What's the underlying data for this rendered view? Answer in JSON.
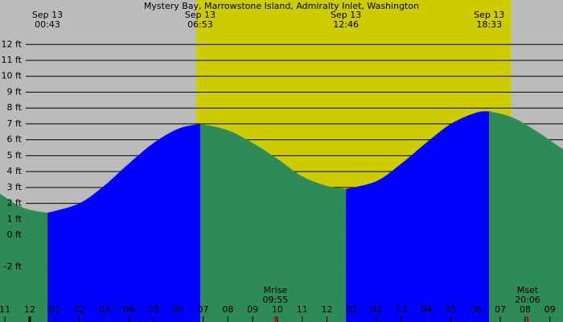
{
  "chart_data": {
    "type": "tide",
    "title": "Mystery Bay, Marrowstone Island, Admiralty Inlet, Washington",
    "background": "#bbbbbb",
    "daylight_color": "#cccc00",
    "daylight": [
      6.72,
      19.42
    ],
    "xlim": [
      -1.2,
      21.53
    ],
    "ylim": [
      -5.47,
      14.8
    ],
    "yticks": [
      {
        "value": 12,
        "label": "12 ft"
      },
      {
        "value": 11,
        "label": "11 ft"
      },
      {
        "value": 10,
        "label": "10 ft"
      },
      {
        "value": 9,
        "label": "9 ft"
      },
      {
        "value": 8,
        "label": "8 ft"
      },
      {
        "value": 7,
        "label": "7 ft"
      },
      {
        "value": 6,
        "label": "6 ft"
      },
      {
        "value": 5,
        "label": "5 ft"
      },
      {
        "value": 4,
        "label": "4 ft"
      },
      {
        "value": 3,
        "label": "3 ft"
      },
      {
        "value": 2,
        "label": "2 ft"
      },
      {
        "value": 1,
        "label": "1 ft"
      },
      {
        "value": 0,
        "label": "0 ft"
      },
      {
        "value": -2,
        "label": "-2 ft"
      }
    ],
    "xticks": [
      {
        "value": -1,
        "label": "11"
      },
      {
        "value": 0,
        "label": "12"
      },
      {
        "value": 1,
        "label": "01"
      },
      {
        "value": 2,
        "label": "02"
      },
      {
        "value": 3,
        "label": "03"
      },
      {
        "value": 4,
        "label": "04"
      },
      {
        "value": 5,
        "label": "05"
      },
      {
        "value": 6,
        "label": "06"
      },
      {
        "value": 7,
        "label": "07"
      },
      {
        "value": 8,
        "label": "08"
      },
      {
        "value": 9,
        "label": "09"
      },
      {
        "value": 10,
        "label": "10"
      },
      {
        "value": 11,
        "label": "11"
      },
      {
        "value": 12,
        "label": "12"
      },
      {
        "value": 13,
        "label": "01"
      },
      {
        "value": 14,
        "label": "02"
      },
      {
        "value": 15,
        "label": "03"
      },
      {
        "value": 16,
        "label": "04"
      },
      {
        "value": 17,
        "label": "05"
      },
      {
        "value": 18,
        "label": "06"
      },
      {
        "value": 19,
        "label": "07"
      },
      {
        "value": 20,
        "label": "08"
      },
      {
        "value": 21,
        "label": "09"
      }
    ],
    "grid": true,
    "series": [
      {
        "color": "#2e8b57",
        "x": [
          -1.2,
          -0.5,
          0,
          0.717
        ],
        "values": [
          2.6,
          1.9,
          1.6,
          1.4
        ]
      },
      {
        "color": "#0000ff",
        "x": [
          0.717,
          2,
          3,
          4,
          5,
          6,
          6.883
        ],
        "values": [
          1.4,
          2.0,
          3.1,
          4.5,
          5.8,
          6.7,
          7.0
        ]
      },
      {
        "color": "#2e8b57",
        "x": [
          6.883,
          8,
          9,
          10,
          11,
          12,
          12.767
        ],
        "values": [
          7.0,
          6.6,
          5.8,
          4.8,
          3.7,
          3.1,
          2.9
        ]
      },
      {
        "color": "#0000ff",
        "x": [
          12.767,
          14,
          15,
          16,
          17,
          18,
          18.55
        ],
        "values": [
          2.9,
          3.4,
          4.5,
          5.8,
          7.0,
          7.7,
          7.8
        ]
      },
      {
        "color": "#2e8b57",
        "x": [
          18.55,
          19.5,
          20.5,
          21.53
        ],
        "values": [
          7.8,
          7.4,
          6.5,
          5.4
        ]
      }
    ],
    "extremes": [
      {
        "x": 0.717,
        "date": "Sep 13",
        "time": "00:43"
      },
      {
        "x": 6.883,
        "date": "Sep 13",
        "time": "06:53"
      },
      {
        "x": 12.767,
        "date": "Sep 13",
        "time": "12:46"
      },
      {
        "x": 18.55,
        "date": "Sep 13",
        "time": "18:33"
      }
    ],
    "moon": [
      {
        "x": 9.917,
        "label": "Mrise",
        "time": "09:55"
      },
      {
        "x": 20.1,
        "label": "Mset",
        "time": "20:06"
      }
    ]
  }
}
